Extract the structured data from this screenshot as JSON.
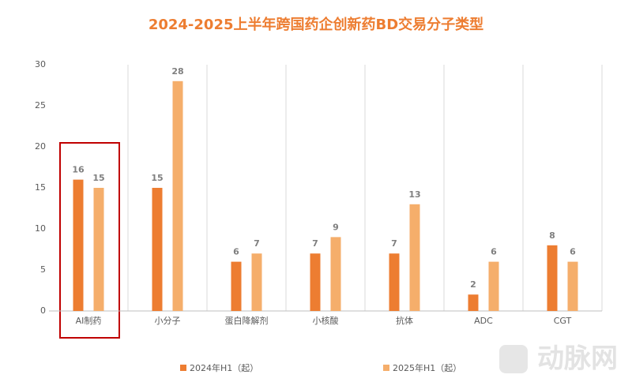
{
  "chart_data": {
    "type": "bar",
    "title": "2024-2025上半年跨国药企创新药BD交易分子类型",
    "categories": [
      "AI制药",
      "小分子",
      "蛋白降解剂",
      "小核酸",
      "抗体",
      "ADC",
      "CGT"
    ],
    "series": [
      {
        "name": "2024年H1（起）",
        "color": "#ed7d31",
        "values": [
          16,
          15,
          6,
          7,
          7,
          2,
          8
        ]
      },
      {
        "name": "2025年H1（起）",
        "color": "#f5ae6b",
        "values": [
          15,
          28,
          7,
          9,
          13,
          6,
          6
        ]
      }
    ],
    "ylim": [
      0,
      30
    ],
    "yticks": [
      0,
      5,
      10,
      15,
      20,
      25,
      30
    ],
    "grid": false,
    "legend": "bottom",
    "watermark": "动脉网"
  }
}
